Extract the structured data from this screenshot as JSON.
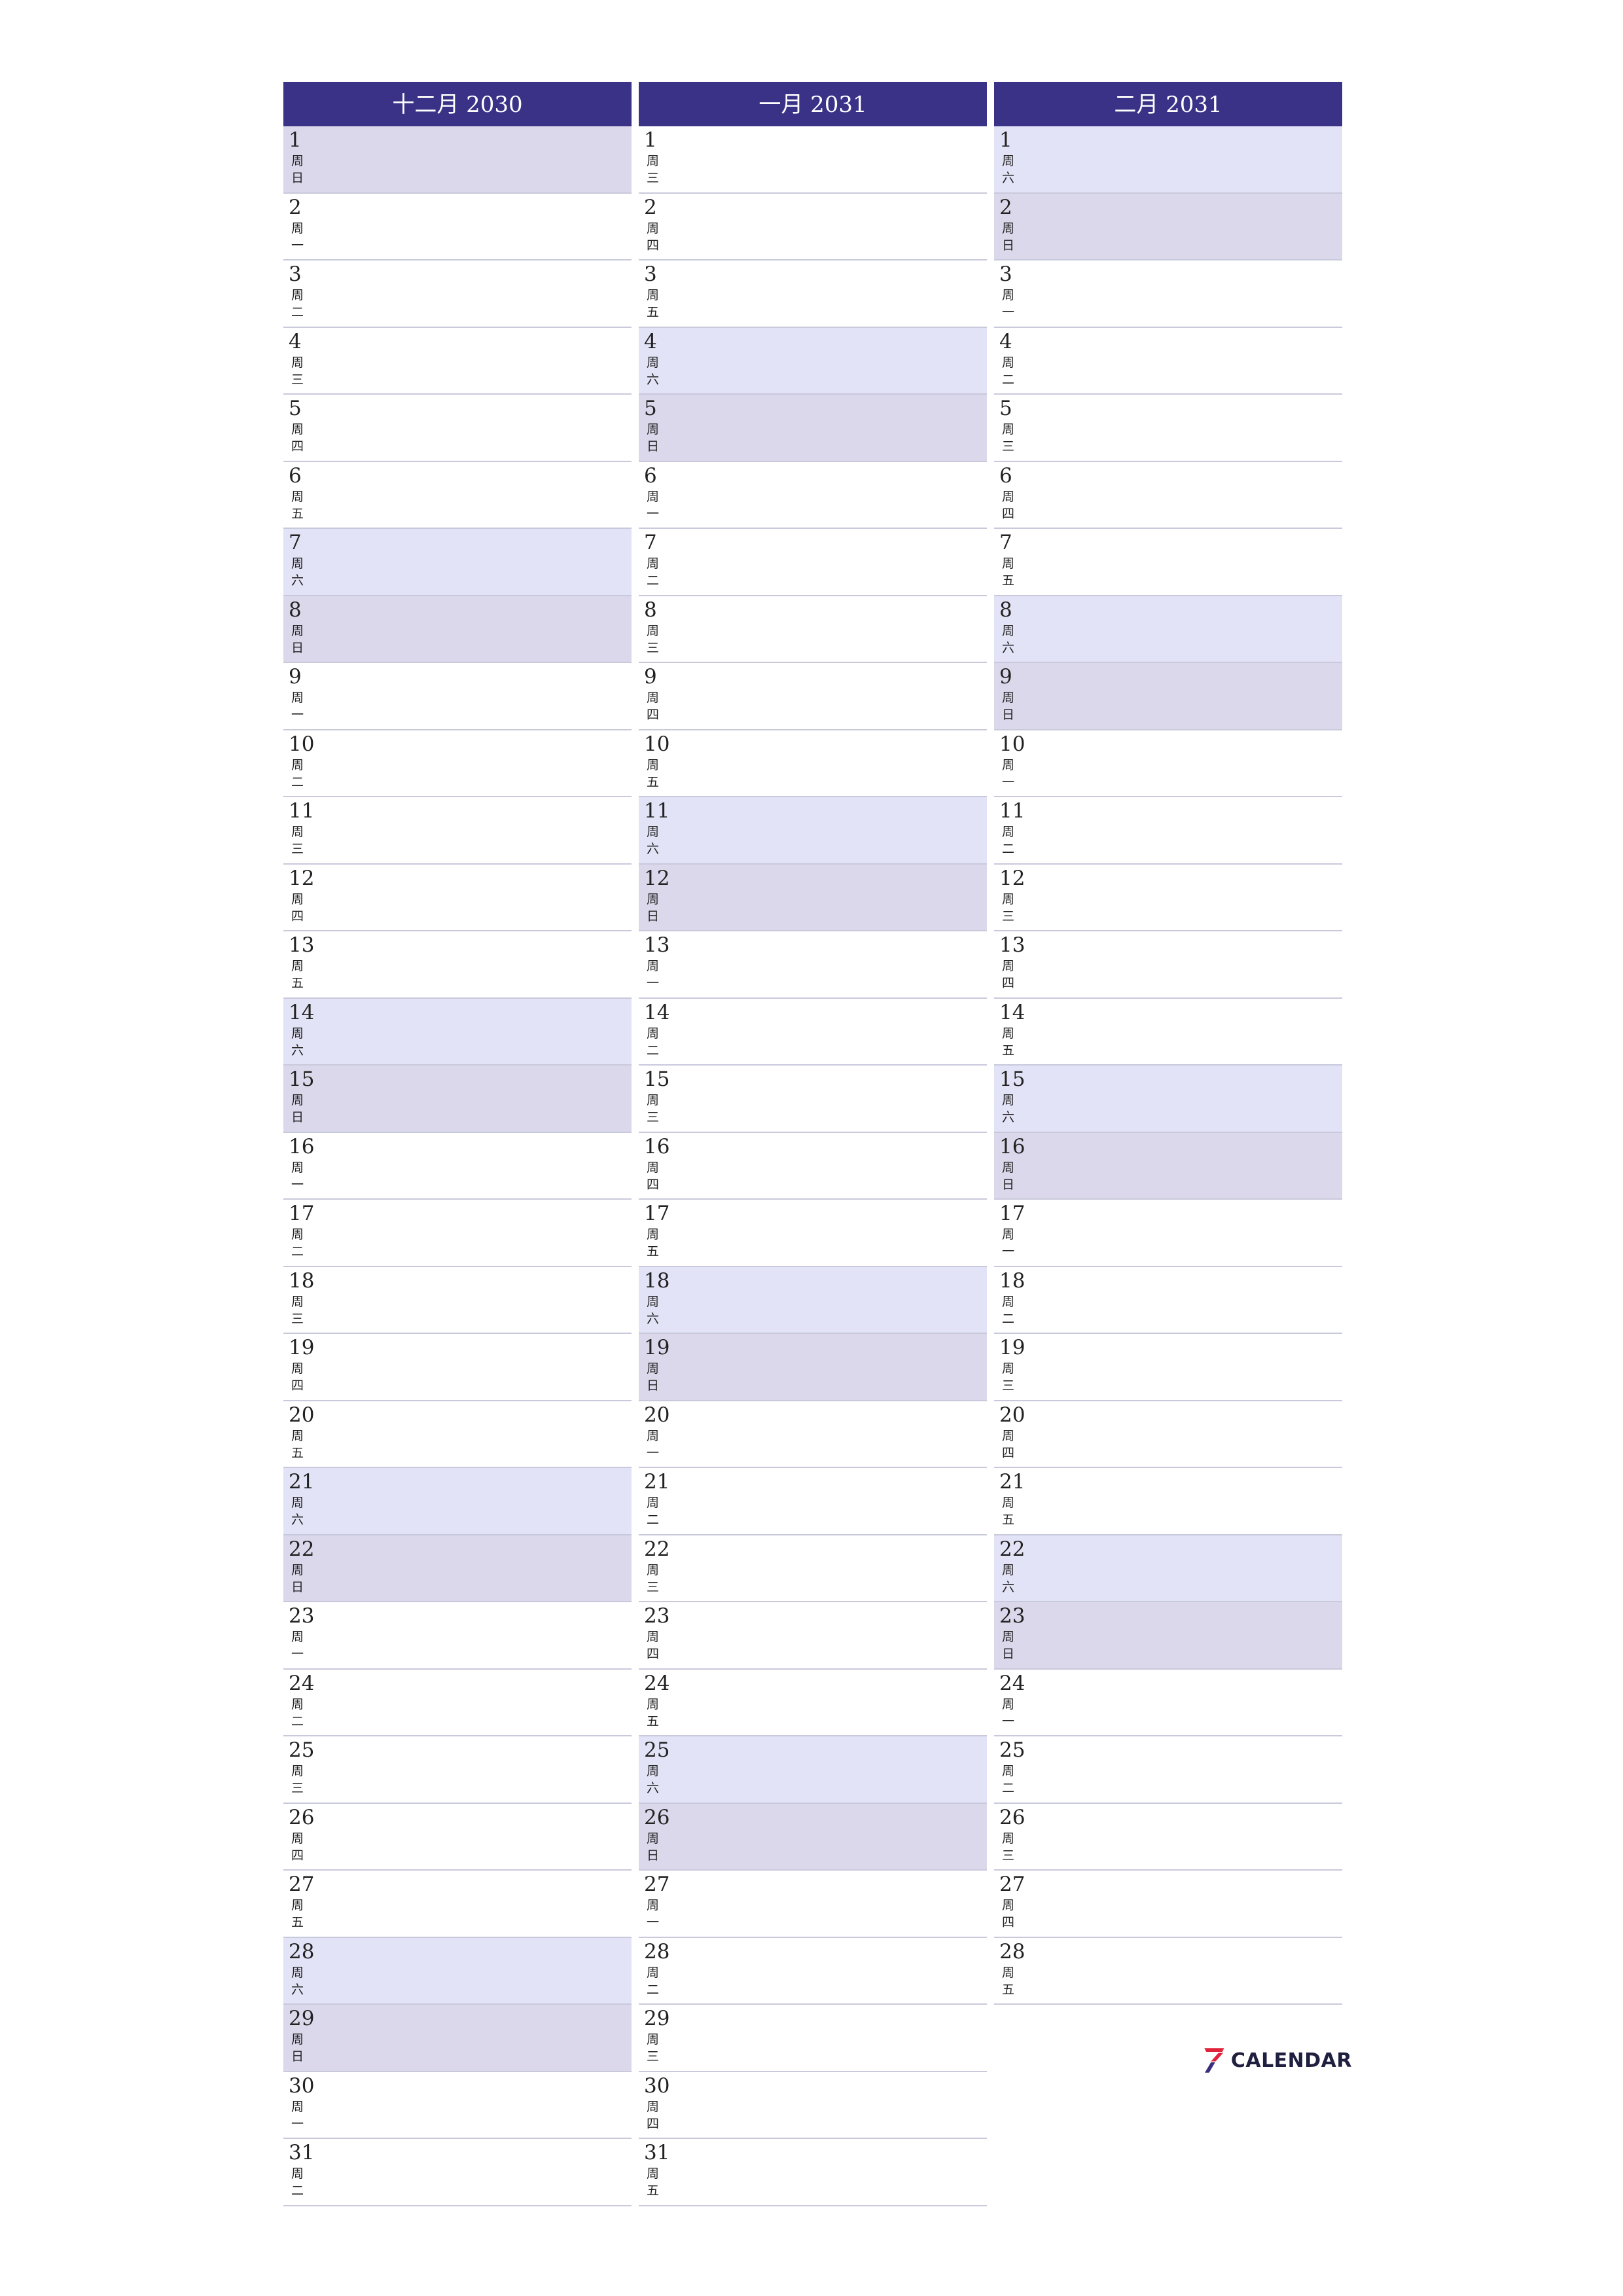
{
  "months": [
    {
      "title": "十二月 2030",
      "days": [
        {
          "n": "1",
          "wd": "日"
        },
        {
          "n": "2",
          "wd": "一"
        },
        {
          "n": "3",
          "wd": "二"
        },
        {
          "n": "4",
          "wd": "三"
        },
        {
          "n": "5",
          "wd": "四"
        },
        {
          "n": "6",
          "wd": "五"
        },
        {
          "n": "7",
          "wd": "六"
        },
        {
          "n": "8",
          "wd": "日"
        },
        {
          "n": "9",
          "wd": "一"
        },
        {
          "n": "10",
          "wd": "二"
        },
        {
          "n": "11",
          "wd": "三"
        },
        {
          "n": "12",
          "wd": "四"
        },
        {
          "n": "13",
          "wd": "五"
        },
        {
          "n": "14",
          "wd": "六"
        },
        {
          "n": "15",
          "wd": "日"
        },
        {
          "n": "16",
          "wd": "一"
        },
        {
          "n": "17",
          "wd": "二"
        },
        {
          "n": "18",
          "wd": "三"
        },
        {
          "n": "19",
          "wd": "四"
        },
        {
          "n": "20",
          "wd": "五"
        },
        {
          "n": "21",
          "wd": "六"
        },
        {
          "n": "22",
          "wd": "日"
        },
        {
          "n": "23",
          "wd": "一"
        },
        {
          "n": "24",
          "wd": "二"
        },
        {
          "n": "25",
          "wd": "三"
        },
        {
          "n": "26",
          "wd": "四"
        },
        {
          "n": "27",
          "wd": "五"
        },
        {
          "n": "28",
          "wd": "六"
        },
        {
          "n": "29",
          "wd": "日"
        },
        {
          "n": "30",
          "wd": "一"
        },
        {
          "n": "31",
          "wd": "二"
        }
      ]
    },
    {
      "title": "一月 2031",
      "days": [
        {
          "n": "1",
          "wd": "三"
        },
        {
          "n": "2",
          "wd": "四"
        },
        {
          "n": "3",
          "wd": "五"
        },
        {
          "n": "4",
          "wd": "六"
        },
        {
          "n": "5",
          "wd": "日"
        },
        {
          "n": "6",
          "wd": "一"
        },
        {
          "n": "7",
          "wd": "二"
        },
        {
          "n": "8",
          "wd": "三"
        },
        {
          "n": "9",
          "wd": "四"
        },
        {
          "n": "10",
          "wd": "五"
        },
        {
          "n": "11",
          "wd": "六"
        },
        {
          "n": "12",
          "wd": "日"
        },
        {
          "n": "13",
          "wd": "一"
        },
        {
          "n": "14",
          "wd": "二"
        },
        {
          "n": "15",
          "wd": "三"
        },
        {
          "n": "16",
          "wd": "四"
        },
        {
          "n": "17",
          "wd": "五"
        },
        {
          "n": "18",
          "wd": "六"
        },
        {
          "n": "19",
          "wd": "日"
        },
        {
          "n": "20",
          "wd": "一"
        },
        {
          "n": "21",
          "wd": "二"
        },
        {
          "n": "22",
          "wd": "三"
        },
        {
          "n": "23",
          "wd": "四"
        },
        {
          "n": "24",
          "wd": "五"
        },
        {
          "n": "25",
          "wd": "六"
        },
        {
          "n": "26",
          "wd": "日"
        },
        {
          "n": "27",
          "wd": "一"
        },
        {
          "n": "28",
          "wd": "二"
        },
        {
          "n": "29",
          "wd": "三"
        },
        {
          "n": "30",
          "wd": "四"
        },
        {
          "n": "31",
          "wd": "五"
        }
      ]
    },
    {
      "title": "二月 2031",
      "days": [
        {
          "n": "1",
          "wd": "六"
        },
        {
          "n": "2",
          "wd": "日"
        },
        {
          "n": "3",
          "wd": "一"
        },
        {
          "n": "4",
          "wd": "二"
        },
        {
          "n": "5",
          "wd": "三"
        },
        {
          "n": "6",
          "wd": "四"
        },
        {
          "n": "7",
          "wd": "五"
        },
        {
          "n": "8",
          "wd": "六"
        },
        {
          "n": "9",
          "wd": "日"
        },
        {
          "n": "10",
          "wd": "一"
        },
        {
          "n": "11",
          "wd": "二"
        },
        {
          "n": "12",
          "wd": "三"
        },
        {
          "n": "13",
          "wd": "四"
        },
        {
          "n": "14",
          "wd": "五"
        },
        {
          "n": "15",
          "wd": "六"
        },
        {
          "n": "16",
          "wd": "日"
        },
        {
          "n": "17",
          "wd": "一"
        },
        {
          "n": "18",
          "wd": "二"
        },
        {
          "n": "19",
          "wd": "三"
        },
        {
          "n": "20",
          "wd": "四"
        },
        {
          "n": "21",
          "wd": "五"
        },
        {
          "n": "22",
          "wd": "六"
        },
        {
          "n": "23",
          "wd": "日"
        },
        {
          "n": "24",
          "wd": "一"
        },
        {
          "n": "25",
          "wd": "二"
        },
        {
          "n": "26",
          "wd": "三"
        },
        {
          "n": "27",
          "wd": "四"
        },
        {
          "n": "28",
          "wd": "五"
        }
      ]
    }
  ],
  "weekday_prefix": "周",
  "logo": {
    "text": "CALENDAR",
    "icon": "seven-logo-icon"
  },
  "colors": {
    "header": "#393286",
    "saturday": "#e3e3f7",
    "sunday": "#dcd8ec",
    "divider": "#c9c9dc"
  }
}
